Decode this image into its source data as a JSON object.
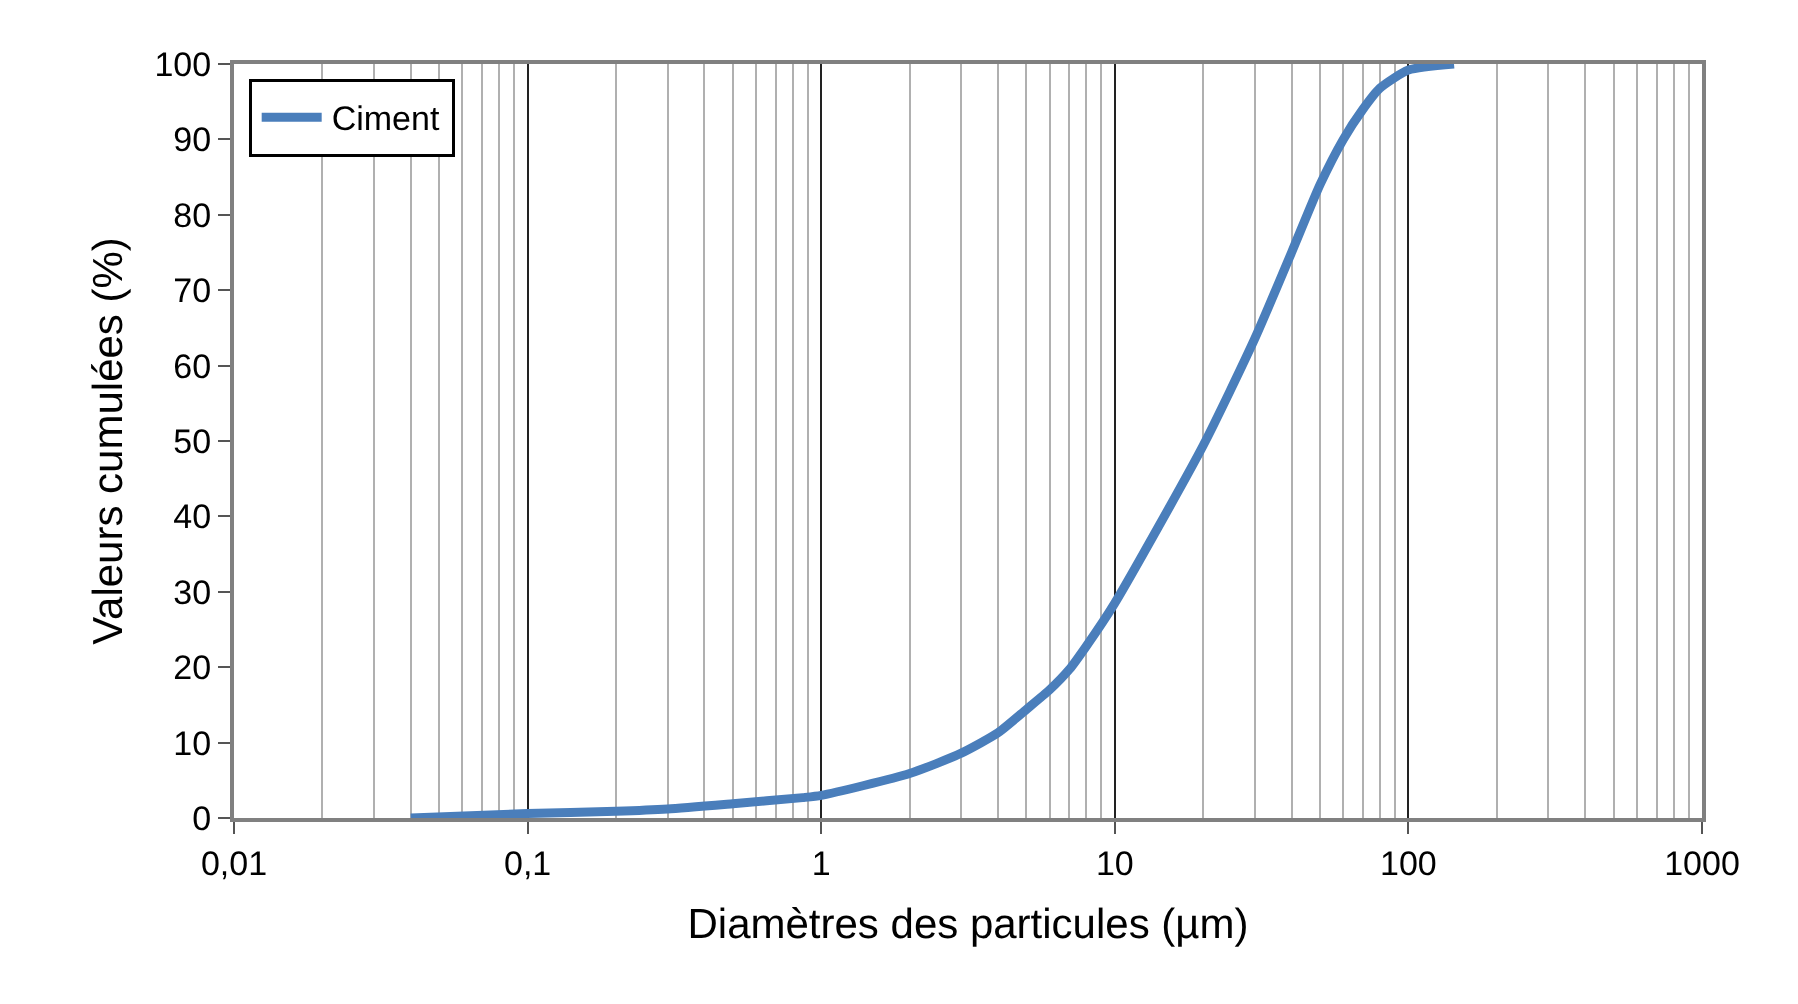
{
  "chart_data": {
    "type": "line",
    "xlabel": "Diamètres des particules (µm)",
    "ylabel": "Valeurs cumulées (%)",
    "log": "x",
    "xlim": [
      0.01,
      1000
    ],
    "ylim": [
      0,
      100
    ],
    "xticks": [
      {
        "value": 0.01,
        "label": "0,01"
      },
      {
        "value": 0.1,
        "label": "0,1"
      },
      1,
      10,
      100,
      1000
    ],
    "yticks": [
      0,
      10,
      20,
      30,
      40,
      50,
      60,
      70,
      80,
      90,
      100
    ],
    "grid": "x",
    "legend": "top left",
    "marker": "none",
    "line_style": "solid",
    "series": [
      {
        "name": "Ciment",
        "color": "#4a7ebb",
        "x": [
          0.04,
          0.1,
          0.2,
          0.3,
          0.5,
          0.865,
          1,
          2,
          3,
          4,
          5,
          6,
          7,
          8,
          10,
          20,
          30,
          40,
          50,
          60,
          70,
          80,
          100,
          143
        ],
        "values": [
          0,
          0.6,
          0.9,
          1.2,
          1.9,
          2.7,
          3,
          5.9,
          8.6,
          11.3,
          14.4,
          17,
          19.7,
          22.8,
          28.5,
          49.4,
          63.6,
          75,
          84,
          90,
          94,
          96.8,
          99.2,
          100
        ]
      }
    ]
  }
}
